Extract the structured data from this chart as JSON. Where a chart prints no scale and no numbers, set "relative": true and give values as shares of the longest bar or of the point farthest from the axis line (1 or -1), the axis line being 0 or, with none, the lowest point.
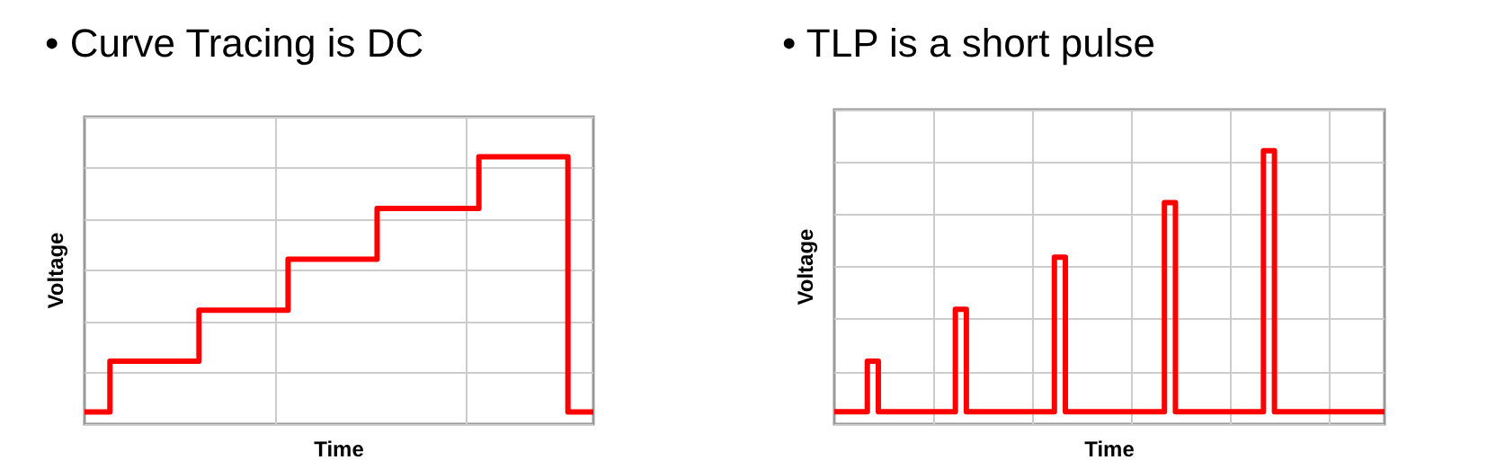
{
  "chart_data": [
    {
      "type": "step",
      "title": "• Curve Tracing is DC",
      "xlabel": "Time",
      "ylabel": "Voltage",
      "relative": true,
      "grid": true,
      "tick_labels": false,
      "categories": [
        null,
        null,
        null,
        null,
        null,
        null,
        null,
        null,
        null,
        null,
        null,
        null,
        null,
        null,
        null,
        null,
        null,
        null,
        null,
        null,
        null,
        null,
        null,
        null,
        null,
        null,
        null,
        null,
        null,
        null,
        null,
        null,
        null,
        null,
        null,
        null,
        null,
        null,
        null,
        null,
        null
      ],
      "series": [
        {
          "color": "#ff0000",
          "values": [
            0.045,
            0.045,
            0.235,
            0.235,
            0.235,
            0.235,
            0.235,
            0.235,
            0.235,
            0.426,
            0.426,
            0.426,
            0.426,
            0.426,
            0.426,
            0.426,
            0.617,
            0.617,
            0.617,
            0.617,
            0.617,
            0.617,
            0.617,
            0.807,
            0.807,
            0.807,
            0.807,
            0.807,
            0.807,
            0.807,
            0.807,
            1,
            1,
            1,
            1,
            1,
            1,
            1,
            0.045,
            0.045,
            0.045
          ]
        }
      ]
    },
    {
      "type": "step",
      "title": "• TLP is a short pulse",
      "xlabel": "Time",
      "ylabel": "Voltage",
      "relative": true,
      "grid": true,
      "tick_labels": false,
      "categories": [
        null,
        null,
        null,
        null,
        null,
        null,
        null,
        null,
        null,
        null,
        null,
        null,
        null,
        null,
        null,
        null,
        null,
        null,
        null,
        null,
        null,
        null,
        null,
        null,
        null,
        null,
        null,
        null,
        null,
        null,
        null,
        null,
        null,
        null,
        null,
        null,
        null,
        null,
        null,
        null,
        null,
        null,
        null,
        null,
        null,
        null,
        null,
        null,
        null,
        null,
        null
      ],
      "series": [
        {
          "color": "#ff0000",
          "values": [
            0.045,
            0.045,
            0.045,
            0.23,
            0.045,
            0.045,
            0.045,
            0.045,
            0.045,
            0.045,
            0.045,
            0.42,
            0.045,
            0.045,
            0.045,
            0.045,
            0.045,
            0.045,
            0.045,
            0.045,
            0.61,
            0.045,
            0.045,
            0.045,
            0.045,
            0.045,
            0.045,
            0.045,
            0.045,
            0.045,
            0.81,
            0.045,
            0.045,
            0.045,
            0.045,
            0.045,
            0.045,
            0.045,
            0.045,
            1,
            0.045,
            0.045,
            0.045,
            0.045,
            0.045,
            0.045,
            0.045,
            0.045,
            0.045,
            0.045,
            0.045
          ]
        }
      ]
    }
  ]
}
